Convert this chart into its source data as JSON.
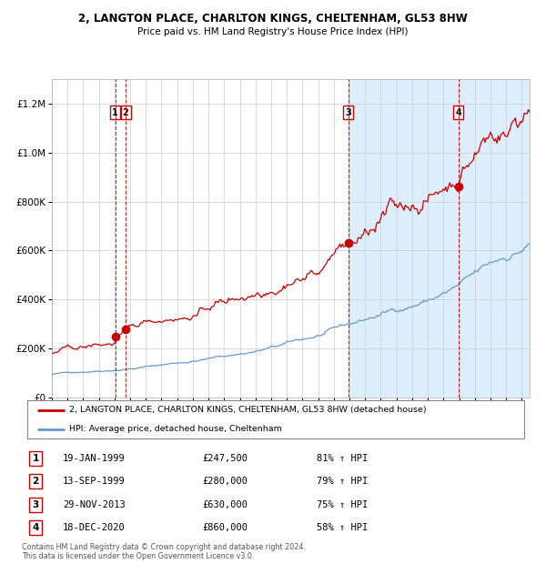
{
  "title1": "2, LANGTON PLACE, CHARLTON KINGS, CHELTENHAM, GL53 8HW",
  "title2": "Price paid vs. HM Land Registry's House Price Index (HPI)",
  "legend_line1": "2, LANGTON PLACE, CHARLTON KINGS, CHELTENHAM, GL53 8HW (detached house)",
  "legend_line2": "HPI: Average price, detached house, Cheltenham",
  "transactions": [
    {
      "num": 1,
      "date": "19-JAN-1999",
      "date_x": 1999.05,
      "price": 247500,
      "pct": "81%",
      "dir": "↑"
    },
    {
      "num": 2,
      "date": "13-SEP-1999",
      "date_x": 1999.71,
      "price": 280000,
      "pct": "79%",
      "dir": "↑"
    },
    {
      "num": 3,
      "date": "29-NOV-2013",
      "date_x": 2013.91,
      "price": 630000,
      "pct": "75%",
      "dir": "↑"
    },
    {
      "num": 4,
      "date": "18-DEC-2020",
      "date_x": 2020.96,
      "price": 860000,
      "pct": "58%",
      "dir": "↑"
    }
  ],
  "red_line_color": "#cc0000",
  "blue_line_color": "#6699cc",
  "shading_color": "#ddeeff",
  "vline_color": "#cc0000",
  "box_color": "#cc0000",
  "ylim": [
    0,
    1300000
  ],
  "xlim_start": 1995.0,
  "xlim_end": 2025.5,
  "footer1": "Contains HM Land Registry data © Crown copyright and database right 2024.",
  "footer2": "This data is licensed under the Open Government Licence v3.0."
}
